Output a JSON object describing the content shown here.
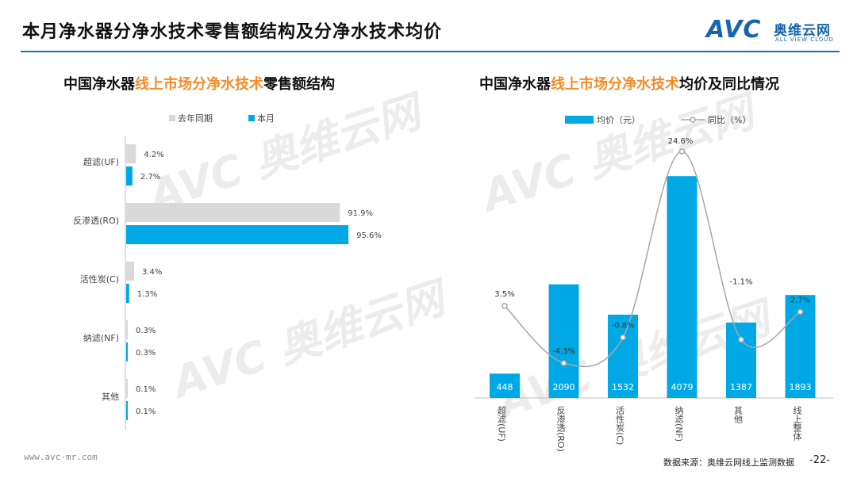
{
  "header": {
    "title": "本月净水器分净水技术零售额结构及分净水技术均价",
    "logo_mark": "AVC",
    "logo_cn": "奥维云网",
    "logo_en": "ALL VIEW CLOUD"
  },
  "watermark": {
    "mark": "AVC 奥维云网",
    "sub": "ALL VIEW CLOUD"
  },
  "footer": {
    "url": "www.avc-mr.com",
    "source": "数据来源：奥维云网线上监测数据",
    "page": "-22-"
  },
  "colors": {
    "current": "#00a9e6",
    "last_year": "#d9d9d9",
    "line": "#a6a6a6",
    "title_highlight": "#f28c28",
    "brand": "#1565b0"
  },
  "chart_data": [
    {
      "type": "bar",
      "orientation": "horizontal",
      "title_parts": [
        "中国净水器",
        "线上市场分净水技术",
        "零售额结构"
      ],
      "categories": [
        "超滤(UF)",
        "反渗透(RO)",
        "活性炭(C)",
        "纳滤(NF)",
        "其他"
      ],
      "series": [
        {
          "name": "去年同期",
          "values": [
            4.2,
            91.9,
            3.4,
            0.3,
            0.1
          ],
          "labels": [
            "4.2%",
            "91.9%",
            "3.4%",
            "0.3%",
            "0.1%"
          ]
        },
        {
          "name": "本月",
          "values": [
            2.7,
            95.6,
            1.3,
            0.3,
            0.1
          ],
          "labels": [
            "2.7%",
            "95.6%",
            "1.3%",
            "0.3%",
            "0.1%"
          ]
        }
      ],
      "xlim": [
        0,
        100
      ],
      "legend": "top"
    },
    {
      "type": "bar",
      "title_parts": [
        "中国净水器",
        "线上市场分净水技术",
        "均价及同比情况"
      ],
      "categories": [
        "超滤(UF)",
        "反渗透(RO)",
        "活性炭(C)",
        "纳滤(NF)",
        "其他",
        "线上整体"
      ],
      "series": [
        {
          "name": "均价（元）",
          "type": "bar",
          "values": [
            448,
            2090,
            1532,
            4079,
            1387,
            1893
          ],
          "labels": [
            "448",
            "2090",
            "1532",
            "4079",
            "1387",
            "1893"
          ]
        },
        {
          "name": "同比（%）",
          "type": "line",
          "values": [
            3.5,
            -4.3,
            -0.8,
            24.6,
            -1.1,
            2.7
          ],
          "labels": [
            "3.5%",
            "-4.3%",
            "-0.8%",
            "24.6%",
            "-1.1%",
            "2.7%"
          ]
        }
      ],
      "ylim": [
        0,
        4500
      ],
      "legend": "top"
    }
  ]
}
